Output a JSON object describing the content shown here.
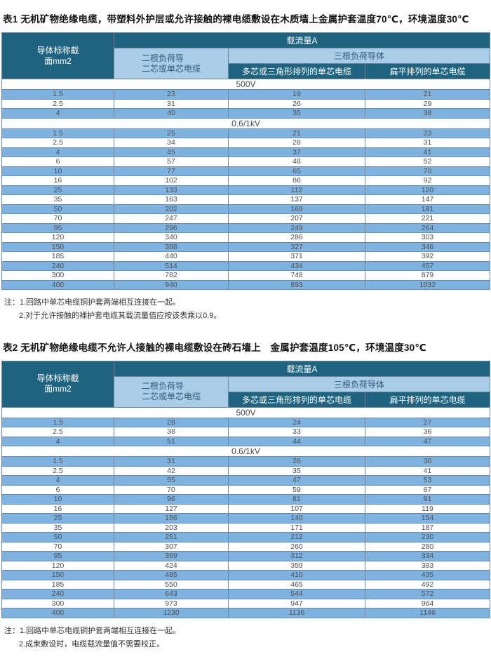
{
  "colors": {
    "header_dark_teal": "#1e6380",
    "header_light_blue": "#a9cce8",
    "row_blue": "#7eb2e0",
    "row_white": "#ffffff",
    "header_text": "#ffffff",
    "data_text": "#4f4f4f"
  },
  "tables": [
    {
      "title": "表1 无机矿物绝缘电缆，带塑料外护层或允许接触的裸电缆敷设在木质墙上金属护套温度70℃，环境温度30℃",
      "header": {
        "conductor_line1": "导体标称截",
        "conductor_line2": "面mm2",
        "ampacity_group": "载流量A",
        "two_conductor_line1": "二根负荷导",
        "two_conductor_line2": "二芯或单芯电缆",
        "three_conductor_group": "三根负荷导体",
        "multicore_trefoil": "多芯或三角形排列的单芯电缆",
        "flat_arrangement": "扁平排列的单芯电缆"
      },
      "sections": [
        {
          "voltage": "500V",
          "rows": [
            [
              "1.5",
              "23",
              "19",
              "21"
            ],
            [
              "2.5",
              "31",
              "26",
              "29"
            ],
            [
              "4",
              "40",
              "35",
              "38"
            ]
          ]
        },
        {
          "voltage": "0.6/1kV",
          "rows": [
            [
              "1.5",
              "25",
              "21",
              "23"
            ],
            [
              "2.5",
              "34",
              "28",
              "31"
            ],
            [
              "4",
              "45",
              "37",
              "41"
            ],
            [
              "6",
              "57",
              "48",
              "52"
            ],
            [
              "10",
              "77",
              "65",
              "70"
            ],
            [
              "16",
              "102",
              "86",
              "92"
            ],
            [
              "25",
              "133",
              "112",
              "120"
            ],
            [
              "35",
              "163",
              "137",
              "147"
            ],
            [
              "50",
              "202",
              "169",
              "181"
            ],
            [
              "70",
              "247",
              "207",
              "221"
            ],
            [
              "95",
              "296",
              "249",
              "264"
            ],
            [
              "120",
              "340",
              "286",
              "303"
            ],
            [
              "150",
              "388",
              "327",
              "346"
            ],
            [
              "185",
              "440",
              "371",
              "392"
            ],
            [
              "240",
              "514",
              "434",
              "457"
            ],
            [
              "300",
              "782",
              "748",
              "879"
            ],
            [
              "400",
              "940",
              "893",
              "1032"
            ]
          ]
        }
      ],
      "notes": [
        "注：1.回路中单芯电缆铜护套两端相互连接在一起。",
        "2.对于允许接触的裸护套电缆其载流量值应按该表乘以0.9。"
      ]
    },
    {
      "title": "表2 无机矿物绝缘电缆不允许人接触的裸电缆敷设在砖石墙上　金属护套温度105℃，环境温度30℃",
      "header": {
        "conductor_line1": "导体标称截",
        "conductor_line2": "面mm2",
        "ampacity_group": "载流量A",
        "two_conductor_line1": "二根负荷导",
        "two_conductor_line2": "二芯或单芯电缆",
        "three_conductor_group": "三根负荷导体",
        "multicore_trefoil": "多芯或三角形排列的单芯电缆",
        "flat_arrangement": "扁平排列的单芯电缆"
      },
      "sections": [
        {
          "voltage": "500V",
          "rows": [
            [
              "1.5",
              "28",
              "24",
              "27"
            ],
            [
              "2.5",
              "38",
              "33",
              "36"
            ],
            [
              "4",
              "51",
              "44",
              "47"
            ]
          ]
        },
        {
          "voltage": "0.6/1kV",
          "rows": [
            [
              "1.5",
              "31",
              "26",
              "30"
            ],
            [
              "2.5",
              "42",
              "35",
              "41"
            ],
            [
              "4",
              "55",
              "47",
              "53"
            ],
            [
              "6",
              "70",
              "59",
              "67"
            ],
            [
              "10",
              "96",
              "81",
              "91"
            ],
            [
              "16",
              "127",
              "107",
              "119"
            ],
            [
              "25",
              "166",
              "140",
              "154"
            ],
            [
              "35",
              "203",
              "171",
              "187"
            ],
            [
              "50",
              "251",
              "212",
              "230"
            ],
            [
              "70",
              "307",
              "260",
              "280"
            ],
            [
              "95",
              "369",
              "312",
              "334"
            ],
            [
              "120",
              "424",
              "359",
              "383"
            ],
            [
              "150",
              "485",
              "410",
              "435"
            ],
            [
              "185",
              "550",
              "465",
              "492"
            ],
            [
              "240",
              "643",
              "544",
              "572"
            ],
            [
              "300",
              "973",
              "947",
              "964"
            ],
            [
              "400",
              "1230",
              "1136",
              "1146"
            ]
          ]
        }
      ],
      "notes": [
        "注：1.回路中单芯电缆铜护套两端相互连接在一起。",
        "2.成束敷设时，电缆载流量值不需要校正。"
      ]
    }
  ]
}
